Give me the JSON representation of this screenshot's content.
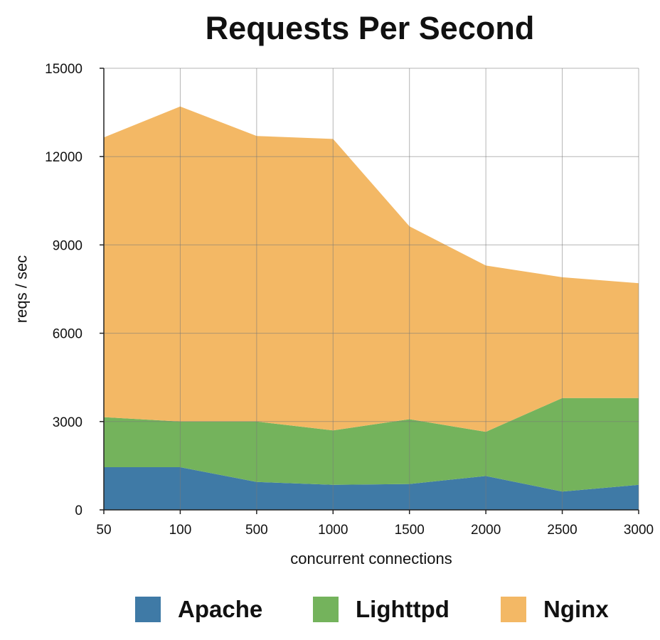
{
  "chart_data": {
    "type": "area",
    "stacked": true,
    "title": "Requests Per Second",
    "xlabel": "concurrent connections",
    "ylabel": "reqs / sec",
    "categories": [
      "50",
      "100",
      "500",
      "1000",
      "1500",
      "2000",
      "2500",
      "3000"
    ],
    "ylim": [
      0,
      15000
    ],
    "yticks": [
      "0",
      "3000",
      "6000",
      "9000",
      "12000",
      "15000"
    ],
    "grid": true,
    "legend_position": "bottom",
    "series": [
      {
        "name": "Apache",
        "color": "#3f7aa6",
        "values": [
          1450,
          1450,
          950,
          850,
          880,
          1150,
          620,
          850
        ]
      },
      {
        "name": "Lighttpd",
        "color": "#74b35c",
        "values": [
          1700,
          1550,
          2050,
          1850,
          2200,
          1500,
          3180,
          2950
        ]
      },
      {
        "name": "Nginx",
        "color": "#f3b865",
        "values": [
          9500,
          10700,
          9700,
          9900,
          6550,
          5650,
          4100,
          3900
        ]
      }
    ]
  }
}
